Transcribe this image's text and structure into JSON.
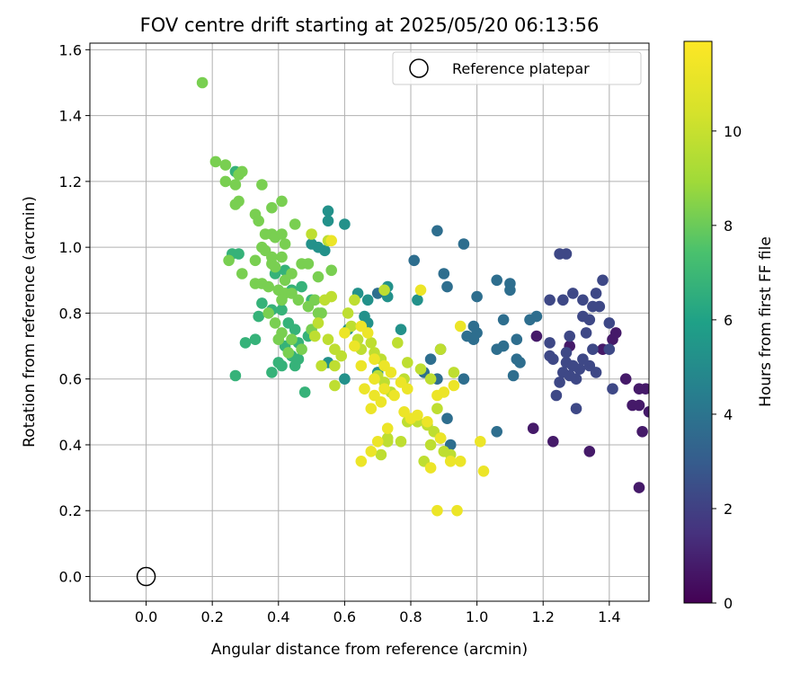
{
  "chart_data": {
    "type": "scatter",
    "title": "FOV centre drift starting at 2025/05/20 06:13:56",
    "xlabel": "Angular distance from reference (arcmin)",
    "ylabel": "Rotation from reference (arcmin)",
    "xlim": [
      -0.17,
      1.52
    ],
    "ylim": [
      -0.075,
      1.62
    ],
    "xticks": [
      0.0,
      0.2,
      0.4,
      0.6,
      0.8,
      1.0,
      1.2,
      1.4
    ],
    "xtick_labels": [
      "0.0",
      "0.2",
      "0.4",
      "0.6",
      "0.8",
      "1.0",
      "1.2",
      "1.4"
    ],
    "yticks": [
      0.0,
      0.2,
      0.4,
      0.6,
      0.8,
      1.0,
      1.2,
      1.4,
      1.6
    ],
    "ytick_labels": [
      "0.0",
      "0.2",
      "0.4",
      "0.6",
      "0.8",
      "1.0",
      "1.2",
      "1.4",
      "1.6"
    ],
    "grid": true,
    "legend": {
      "position": "top-right",
      "label": "Reference platepar"
    },
    "reference_point": {
      "x": 0.0,
      "y": 0.0
    },
    "colorbar": {
      "label": "Hours from first FF file",
      "range": [
        0,
        11.9
      ],
      "ticks": [
        0,
        2,
        4,
        6,
        8,
        10
      ],
      "tick_labels": [
        "0",
        "2",
        "4",
        "6",
        "8",
        "10"
      ],
      "colormap": "viridis"
    },
    "series": [
      {
        "color_value_hours": "0-1.5",
        "points": [
          [
            1.49,
            0.27
          ],
          [
            1.47,
            0.52
          ],
          [
            1.51,
            0.57
          ],
          [
            1.5,
            0.44
          ],
          [
            1.45,
            0.6
          ],
          [
            1.52,
            0.5
          ],
          [
            1.49,
            0.52
          ],
          [
            1.41,
            0.72
          ],
          [
            1.17,
            0.45
          ],
          [
            1.23,
            0.41
          ],
          [
            1.34,
            0.38
          ],
          [
            1.18,
            0.73
          ],
          [
            1.28,
            0.7
          ],
          [
            1.38,
            0.69
          ],
          [
            1.42,
            0.74
          ],
          [
            1.49,
            0.57
          ]
        ]
      },
      {
        "color_value_hours": "1.5-3",
        "points": [
          [
            1.25,
            0.98
          ],
          [
            1.27,
            0.98
          ],
          [
            1.38,
            0.9
          ],
          [
            1.36,
            0.86
          ],
          [
            1.29,
            0.86
          ],
          [
            1.22,
            0.84
          ],
          [
            1.26,
            0.84
          ],
          [
            1.32,
            0.84
          ],
          [
            1.35,
            0.82
          ],
          [
            1.37,
            0.82
          ],
          [
            1.32,
            0.79
          ],
          [
            1.34,
            0.78
          ],
          [
            1.4,
            0.77
          ],
          [
            1.22,
            0.71
          ],
          [
            1.28,
            0.73
          ],
          [
            1.33,
            0.74
          ],
          [
            1.4,
            0.69
          ],
          [
            1.35,
            0.69
          ],
          [
            1.22,
            0.67
          ],
          [
            1.23,
            0.66
          ],
          [
            1.27,
            0.65
          ],
          [
            1.29,
            0.64
          ],
          [
            1.31,
            0.63
          ],
          [
            1.26,
            0.62
          ],
          [
            1.28,
            0.61
          ],
          [
            1.3,
            0.6
          ],
          [
            1.34,
            0.64
          ],
          [
            1.36,
            0.62
          ],
          [
            1.25,
            0.59
          ],
          [
            1.24,
            0.55
          ],
          [
            1.41,
            0.57
          ],
          [
            1.29,
            0.64
          ],
          [
            1.3,
            0.51
          ],
          [
            1.32,
            0.66
          ],
          [
            1.27,
            0.68
          ]
        ]
      },
      {
        "color_value_hours": "3-4.5",
        "points": [
          [
            0.88,
            1.05
          ],
          [
            0.96,
            1.01
          ],
          [
            1.06,
            0.9
          ],
          [
            1.1,
            0.89
          ],
          [
            1.0,
            0.85
          ],
          [
            1.1,
            0.87
          ],
          [
            0.9,
            0.92
          ],
          [
            0.91,
            0.88
          ],
          [
            1.18,
            0.79
          ],
          [
            1.16,
            0.78
          ],
          [
            1.08,
            0.78
          ],
          [
            1.12,
            0.72
          ],
          [
            1.06,
            0.69
          ],
          [
            1.08,
            0.7
          ],
          [
            1.12,
            0.66
          ],
          [
            1.13,
            0.65
          ],
          [
            1.11,
            0.61
          ],
          [
            0.99,
            0.76
          ],
          [
            1.0,
            0.74
          ],
          [
            0.99,
            0.72
          ],
          [
            0.97,
            0.73
          ],
          [
            0.86,
            0.66
          ],
          [
            0.89,
            0.69
          ],
          [
            0.84,
            0.62
          ],
          [
            0.88,
            0.6
          ],
          [
            0.96,
            0.6
          ],
          [
            0.91,
            0.48
          ],
          [
            0.92,
            0.4
          ],
          [
            0.81,
            0.96
          ],
          [
            1.06,
            0.44
          ],
          [
            0.7,
            0.86
          ]
        ]
      },
      {
        "color_value_hours": "4.5-6",
        "points": [
          [
            0.67,
            0.84
          ],
          [
            0.73,
            0.85
          ],
          [
            0.82,
            0.84
          ],
          [
            0.64,
            0.86
          ],
          [
            0.6,
            1.07
          ],
          [
            0.55,
            1.11
          ],
          [
            0.55,
            1.08
          ],
          [
            0.61,
            0.75
          ],
          [
            0.55,
            0.65
          ],
          [
            0.6,
            0.6
          ],
          [
            0.54,
            0.99
          ],
          [
            0.5,
            1.01
          ],
          [
            0.52,
            1.0
          ],
          [
            0.66,
            0.79
          ],
          [
            0.67,
            0.77
          ],
          [
            0.73,
            0.88
          ],
          [
            0.77,
            0.75
          ],
          [
            0.7,
            0.62
          ]
        ]
      },
      {
        "color_value_hours": "6-7.5",
        "points": [
          [
            0.27,
            0.61
          ],
          [
            0.3,
            0.71
          ],
          [
            0.33,
            0.72
          ],
          [
            0.38,
            0.62
          ],
          [
            0.4,
            0.65
          ],
          [
            0.41,
            0.64
          ],
          [
            0.44,
            0.67
          ],
          [
            0.45,
            0.64
          ],
          [
            0.46,
            0.66
          ],
          [
            0.42,
            0.7
          ],
          [
            0.34,
            0.79
          ],
          [
            0.38,
            0.81
          ],
          [
            0.43,
            0.77
          ],
          [
            0.48,
            0.56
          ],
          [
            0.35,
            0.83
          ],
          [
            0.41,
            0.81
          ],
          [
            0.39,
            0.92
          ],
          [
            0.42,
            0.93
          ],
          [
            0.44,
            0.87
          ],
          [
            0.47,
            0.88
          ],
          [
            0.5,
            0.84
          ],
          [
            0.28,
            0.98
          ],
          [
            0.27,
            1.23
          ],
          [
            0.26,
            0.98
          ],
          [
            0.46,
            0.71
          ],
          [
            0.45,
            0.75
          ],
          [
            0.49,
            0.73
          ]
        ]
      },
      {
        "color_value_hours": "7.5-9",
        "points": [
          [
            0.17,
            1.5
          ],
          [
            0.21,
            1.26
          ],
          [
            0.24,
            1.25
          ],
          [
            0.28,
            1.22
          ],
          [
            0.29,
            1.23
          ],
          [
            0.24,
            1.2
          ],
          [
            0.27,
            1.19
          ],
          [
            0.35,
            1.19
          ],
          [
            0.28,
            1.14
          ],
          [
            0.27,
            1.13
          ],
          [
            0.41,
            1.14
          ],
          [
            0.38,
            1.12
          ],
          [
            0.33,
            1.1
          ],
          [
            0.34,
            1.08
          ],
          [
            0.45,
            1.07
          ],
          [
            0.36,
            1.04
          ],
          [
            0.38,
            1.04
          ],
          [
            0.39,
            1.03
          ],
          [
            0.41,
            1.04
          ],
          [
            0.42,
            1.01
          ],
          [
            0.35,
            1.0
          ],
          [
            0.36,
            0.99
          ],
          [
            0.38,
            0.97
          ],
          [
            0.41,
            0.97
          ],
          [
            0.25,
            0.96
          ],
          [
            0.33,
            0.96
          ],
          [
            0.38,
            0.95
          ],
          [
            0.39,
            0.94
          ],
          [
            0.42,
            0.9
          ],
          [
            0.44,
            0.92
          ],
          [
            0.47,
            0.95
          ],
          [
            0.49,
            0.95
          ],
          [
            0.52,
            0.91
          ],
          [
            0.56,
            0.93
          ],
          [
            0.29,
            0.92
          ],
          [
            0.33,
            0.89
          ],
          [
            0.35,
            0.89
          ],
          [
            0.37,
            0.88
          ],
          [
            0.4,
            0.87
          ],
          [
            0.42,
            0.86
          ],
          [
            0.44,
            0.86
          ],
          [
            0.46,
            0.84
          ],
          [
            0.49,
            0.82
          ],
          [
            0.51,
            0.84
          ],
          [
            0.52,
            0.8
          ],
          [
            0.41,
            0.84
          ],
          [
            0.37,
            0.8
          ],
          [
            0.39,
            0.77
          ],
          [
            0.41,
            0.74
          ],
          [
            0.44,
            0.72
          ],
          [
            0.47,
            0.69
          ],
          [
            0.4,
            0.72
          ],
          [
            0.43,
            0.68
          ],
          [
            0.5,
            0.75
          ],
          [
            0.53,
            0.8
          ]
        ]
      },
      {
        "color_value_hours": "9-10.5",
        "points": [
          [
            0.55,
            1.02
          ],
          [
            0.5,
            1.04
          ],
          [
            0.56,
            0.85
          ],
          [
            0.54,
            0.84
          ],
          [
            0.52,
            0.77
          ],
          [
            0.57,
            0.69
          ],
          [
            0.59,
            0.67
          ],
          [
            0.57,
            0.64
          ],
          [
            0.57,
            0.58
          ],
          [
            0.61,
            0.8
          ],
          [
            0.62,
            0.76
          ],
          [
            0.64,
            0.72
          ],
          [
            0.68,
            0.71
          ],
          [
            0.69,
            0.68
          ],
          [
            0.71,
            0.66
          ],
          [
            0.7,
            0.61
          ],
          [
            0.72,
            0.59
          ],
          [
            0.74,
            0.56
          ],
          [
            0.71,
            0.37
          ],
          [
            0.73,
            0.41
          ],
          [
            0.76,
            0.71
          ],
          [
            0.79,
            0.65
          ],
          [
            0.78,
            0.6
          ],
          [
            0.83,
            0.63
          ],
          [
            0.86,
            0.6
          ],
          [
            0.88,
            0.51
          ],
          [
            0.85,
            0.46
          ],
          [
            0.87,
            0.44
          ],
          [
            0.89,
            0.42
          ],
          [
            0.92,
            0.37
          ],
          [
            0.86,
            0.4
          ],
          [
            0.84,
            0.35
          ],
          [
            0.9,
            0.38
          ],
          [
            0.77,
            0.41
          ],
          [
            0.82,
            0.47
          ],
          [
            0.79,
            0.47
          ],
          [
            0.93,
            0.62
          ],
          [
            0.89,
            0.69
          ],
          [
            0.72,
            0.87
          ],
          [
            0.55,
            0.72
          ],
          [
            0.51,
            0.73
          ],
          [
            0.53,
            0.64
          ],
          [
            0.63,
            0.84
          ],
          [
            0.65,
            0.69
          ],
          [
            0.73,
            0.42
          ]
        ]
      },
      {
        "color_value_hours": "10.5-12",
        "points": [
          [
            0.56,
            1.02
          ],
          [
            0.65,
            0.76
          ],
          [
            0.67,
            0.74
          ],
          [
            0.6,
            0.74
          ],
          [
            0.63,
            0.7
          ],
          [
            0.65,
            0.64
          ],
          [
            0.69,
            0.66
          ],
          [
            0.72,
            0.64
          ],
          [
            0.74,
            0.62
          ],
          [
            0.77,
            0.59
          ],
          [
            0.79,
            0.57
          ],
          [
            0.72,
            0.57
          ],
          [
            0.75,
            0.55
          ],
          [
            0.66,
            0.57
          ],
          [
            0.69,
            0.55
          ],
          [
            0.71,
            0.53
          ],
          [
            0.65,
            0.35
          ],
          [
            0.68,
            0.38
          ],
          [
            0.7,
            0.41
          ],
          [
            0.78,
            0.5
          ],
          [
            0.8,
            0.48
          ],
          [
            0.82,
            0.49
          ],
          [
            0.85,
            0.47
          ],
          [
            0.86,
            0.33
          ],
          [
            0.88,
            0.2
          ],
          [
            0.95,
            0.35
          ],
          [
            1.02,
            0.32
          ],
          [
            0.94,
            0.2
          ],
          [
            1.01,
            0.41
          ],
          [
            0.9,
            0.56
          ],
          [
            0.93,
            0.58
          ],
          [
            0.95,
            0.76
          ],
          [
            0.88,
            0.55
          ],
          [
            0.92,
            0.35
          ],
          [
            0.83,
            0.87
          ],
          [
            0.69,
            0.6
          ],
          [
            0.68,
            0.51
          ],
          [
            0.89,
            0.42
          ],
          [
            0.73,
            0.45
          ]
        ]
      }
    ]
  }
}
